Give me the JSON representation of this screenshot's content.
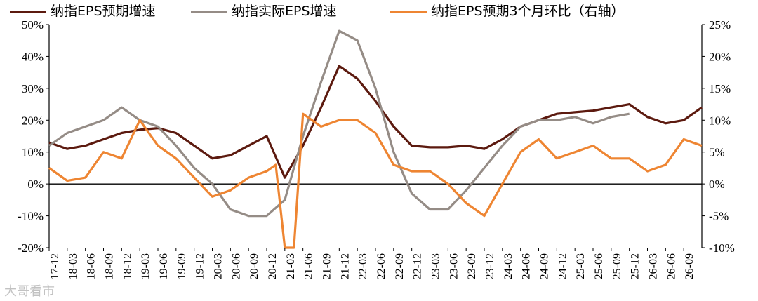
{
  "watermark": "大哥看市",
  "chart_data": {
    "type": "line",
    "legend": [
      "纳指EPS预期增速",
      "纳指实际EPS增速",
      "纳指EPS预期3个月环比（右轴）"
    ],
    "colors": {
      "forecast": "#5c1a0f",
      "actual": "#958c86",
      "mom": "#ee8532"
    },
    "left_axis": {
      "range": [
        -20,
        50
      ],
      "ticks": [
        "50%",
        "40%",
        "30%",
        "20%",
        "10%",
        "0%",
        "-10%",
        "-20%"
      ]
    },
    "right_axis": {
      "range": [
        -10,
        25
      ],
      "ticks": [
        "25%",
        "20%",
        "15%",
        "10%",
        "5%",
        "0%",
        "-5%",
        "-10%"
      ]
    },
    "x_ticks": [
      "17-12",
      "18-03",
      "18-06",
      "18-09",
      "18-12",
      "19-03",
      "19-06",
      "19-09",
      "19-12",
      "20-03",
      "20-06",
      "20-09",
      "20-12",
      "21-03",
      "21-06",
      "21-09",
      "21-12",
      "22-03",
      "22-06",
      "22-09",
      "22-12",
      "23-03",
      "23-06",
      "23-09",
      "23-12",
      "24-03",
      "24-06",
      "24-09",
      "24-12",
      "25-03",
      "25-06",
      "25-09",
      "25-12",
      "26-03",
      "26-06",
      "26-09"
    ],
    "series": [
      {
        "name": "纳指EPS预期增速",
        "axis": "left",
        "points": [
          [
            0,
            13
          ],
          [
            1,
            11
          ],
          [
            2,
            12
          ],
          [
            3,
            14
          ],
          [
            4,
            16
          ],
          [
            5,
            17
          ],
          [
            6,
            17.5
          ],
          [
            7,
            16
          ],
          [
            8,
            12
          ],
          [
            9,
            8
          ],
          [
            10,
            9
          ],
          [
            11,
            12
          ],
          [
            12,
            15
          ],
          [
            13,
            2
          ],
          [
            14,
            12
          ],
          [
            15,
            24
          ],
          [
            16,
            37
          ],
          [
            17,
            33
          ],
          [
            18,
            26
          ],
          [
            19,
            18
          ],
          [
            20,
            12
          ],
          [
            21,
            11.5
          ],
          [
            22,
            11.5
          ],
          [
            23,
            12
          ],
          [
            24,
            11
          ],
          [
            25,
            14
          ],
          [
            26,
            18
          ],
          [
            27,
            20
          ],
          [
            28,
            22
          ],
          [
            29,
            22.5
          ],
          [
            30,
            23
          ],
          [
            31,
            24
          ],
          [
            32,
            25
          ],
          [
            33,
            21
          ],
          [
            34,
            19
          ],
          [
            35,
            20
          ],
          [
            36,
            24
          ]
        ]
      },
      {
        "name": "纳指实际EPS增速",
        "axis": "left",
        "points": [
          [
            0,
            12
          ],
          [
            1,
            16
          ],
          [
            2,
            18
          ],
          [
            3,
            20
          ],
          [
            4,
            24
          ],
          [
            5,
            20
          ],
          [
            6,
            18
          ],
          [
            7,
            12
          ],
          [
            8,
            5
          ],
          [
            9,
            0
          ],
          [
            10,
            -8
          ],
          [
            11,
            -10
          ],
          [
            12,
            -10
          ],
          [
            13,
            -5
          ],
          [
            14,
            15
          ],
          [
            15,
            32
          ],
          [
            16,
            48
          ],
          [
            17,
            45
          ],
          [
            18,
            30
          ],
          [
            19,
            10
          ],
          [
            20,
            -3
          ],
          [
            21,
            -8
          ],
          [
            22,
            -8
          ],
          [
            23,
            -2
          ],
          [
            24,
            5
          ],
          [
            25,
            12
          ],
          [
            26,
            18
          ],
          [
            27,
            20
          ],
          [
            28,
            20
          ],
          [
            29,
            21
          ],
          [
            30,
            19
          ],
          [
            31,
            21
          ],
          [
            32,
            22
          ]
        ]
      },
      {
        "name": "纳指EPS预期3个月环比（右轴）",
        "axis": "right",
        "points": [
          [
            0,
            2.5
          ],
          [
            1,
            0.5
          ],
          [
            2,
            1
          ],
          [
            3,
            5
          ],
          [
            4,
            4
          ],
          [
            5,
            10
          ],
          [
            6,
            6
          ],
          [
            7,
            4
          ],
          [
            8,
            1
          ],
          [
            9,
            -2
          ],
          [
            10,
            -1
          ],
          [
            11,
            1
          ],
          [
            12,
            2
          ],
          [
            12.5,
            3
          ],
          [
            13,
            -10
          ],
          [
            13.5,
            -10
          ],
          [
            14,
            11
          ],
          [
            15,
            9
          ],
          [
            16,
            10
          ],
          [
            17,
            10
          ],
          [
            18,
            8
          ],
          [
            19,
            3
          ],
          [
            20,
            2
          ],
          [
            21,
            2
          ],
          [
            22,
            0
          ],
          [
            23,
            -3
          ],
          [
            24,
            -5
          ],
          [
            25,
            0
          ],
          [
            26,
            5
          ],
          [
            27,
            7
          ],
          [
            28,
            4
          ],
          [
            29,
            5
          ],
          [
            30,
            6
          ],
          [
            31,
            4
          ],
          [
            32,
            4
          ],
          [
            33,
            2
          ],
          [
            34,
            3
          ],
          [
            35,
            7
          ],
          [
            36,
            6
          ]
        ]
      }
    ]
  }
}
